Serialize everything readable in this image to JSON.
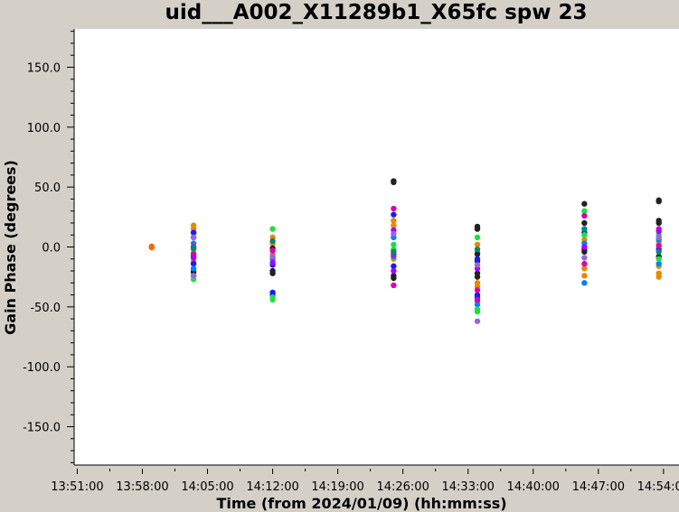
{
  "chart_data": {
    "type": "scatter",
    "title": "uid___A002_X11289b1_X65fc spw 23",
    "xlabel": "Time (from 2024/01/09) (hh:mm:ss)",
    "ylabel": "Gain Phase (degrees)",
    "x_ticks": [
      "13:51:00",
      "13:58:00",
      "14:05:00",
      "14:12:00",
      "14:19:00",
      "14:26:00",
      "14:33:00",
      "14:40:00",
      "14:47:00",
      "14:54:00"
    ],
    "y_ticks": [
      150,
      100,
      50,
      0,
      -50,
      -100,
      -150
    ],
    "y_tick_labels": [
      "150.0",
      "100.0",
      "50.0",
      "0.0",
      "-50.0",
      "-100.0",
      "-150.0"
    ],
    "xlim": [
      "13:50:40",
      "14:55:40"
    ],
    "ylim": [
      -182,
      182
    ],
    "grid": false,
    "background": "#d4d0c8",
    "plot_background": "#ffffff",
    "series": [
      {
        "color": "#ff6600",
        "points": [
          [
            "13:59:00",
            0.5
          ],
          [
            "13:59:00",
            -0.5
          ]
        ]
      },
      {
        "color": "#e68a00",
        "points": [
          [
            "14:03:30",
            18
          ],
          [
            "14:03:30",
            15
          ],
          [
            "14:03:30",
            12
          ],
          [
            "14:03:30",
            -2
          ],
          [
            "14:03:30",
            -12
          ],
          [
            "14:03:30",
            -20
          ],
          [
            "14:12:00",
            8
          ],
          [
            "14:12:00",
            3
          ],
          [
            "14:12:00",
            -6
          ],
          [
            "14:25:00",
            22
          ],
          [
            "14:25:00",
            18
          ],
          [
            "14:25:00",
            -10
          ],
          [
            "14:34:00",
            2
          ],
          [
            "14:34:00",
            -4
          ],
          [
            "14:34:00",
            -30
          ],
          [
            "14:34:00",
            -33
          ],
          [
            "14:45:30",
            6
          ],
          [
            "14:45:30",
            -18
          ],
          [
            "14:45:30",
            -24
          ],
          [
            "14:53:30",
            4
          ],
          [
            "14:53:30",
            -16
          ],
          [
            "14:53:30",
            -22
          ],
          [
            "14:53:30",
            -25
          ]
        ]
      },
      {
        "color": "#222222",
        "points": [
          [
            "14:03:30",
            8
          ],
          [
            "14:03:30",
            -8
          ],
          [
            "14:03:30",
            -21
          ],
          [
            "14:03:30",
            -24
          ],
          [
            "14:12:00",
            -1
          ],
          [
            "14:12:00",
            -20
          ],
          [
            "14:12:00",
            -22
          ],
          [
            "14:25:00",
            54
          ],
          [
            "14:25:00",
            55
          ],
          [
            "14:25:00",
            -24
          ],
          [
            "14:25:00",
            -26
          ],
          [
            "14:34:00",
            17
          ],
          [
            "14:34:00",
            15
          ],
          [
            "14:34:00",
            -6
          ],
          [
            "14:34:00",
            -12
          ],
          [
            "14:34:00",
            -22
          ],
          [
            "14:34:00",
            -25
          ],
          [
            "14:45:30",
            36
          ],
          [
            "14:45:30",
            20
          ],
          [
            "14:45:30",
            -2
          ],
          [
            "14:45:30",
            -4
          ],
          [
            "14:53:30",
            39
          ],
          [
            "14:53:30",
            38
          ],
          [
            "14:53:30",
            22
          ],
          [
            "14:53:30",
            20
          ],
          [
            "14:53:30",
            -8
          ]
        ]
      },
      {
        "color": "#1a1aff",
        "points": [
          [
            "14:03:30",
            12
          ],
          [
            "14:03:30",
            -14
          ],
          [
            "14:12:00",
            -38
          ],
          [
            "14:12:00",
            -40
          ],
          [
            "14:12:00",
            -15
          ],
          [
            "14:25:00",
            27
          ],
          [
            "14:25:00",
            -16
          ],
          [
            "14:34:00",
            -40
          ],
          [
            "14:34:00",
            -42
          ],
          [
            "14:34:00",
            -10
          ],
          [
            "14:45:30",
            12
          ],
          [
            "14:53:30",
            -2
          ]
        ]
      },
      {
        "color": "#0080ff",
        "points": [
          [
            "14:03:30",
            3
          ],
          [
            "14:03:30",
            -18
          ],
          [
            "14:12:00",
            -10
          ],
          [
            "14:25:00",
            8
          ],
          [
            "14:25:00",
            -8
          ],
          [
            "14:34:00",
            -45
          ],
          [
            "14:34:00",
            -48
          ],
          [
            "14:45:30",
            -30
          ],
          [
            "14:45:30",
            3
          ],
          [
            "14:53:30",
            6
          ],
          [
            "14:53:30",
            -14
          ]
        ]
      },
      {
        "color": "#22dd44",
        "points": [
          [
            "14:03:30",
            -27
          ],
          [
            "14:03:30",
            -5
          ],
          [
            "14:12:00",
            15
          ],
          [
            "14:12:00",
            -42
          ],
          [
            "14:12:00",
            -44
          ],
          [
            "14:25:00",
            2
          ],
          [
            "14:25:00",
            -2
          ],
          [
            "14:34:00",
            8
          ],
          [
            "14:34:00",
            -52
          ],
          [
            "14:34:00",
            -54
          ],
          [
            "14:45:30",
            30
          ],
          [
            "14:45:30",
            10
          ],
          [
            "14:53:30",
            10
          ],
          [
            "14:53:30",
            -10
          ]
        ]
      },
      {
        "color": "#dd00aa",
        "points": [
          [
            "14:03:30",
            0
          ],
          [
            "14:03:30",
            -6
          ],
          [
            "14:12:00",
            -3
          ],
          [
            "14:25:00",
            32
          ],
          [
            "14:25:00",
            -32
          ],
          [
            "14:25:00",
            -6
          ],
          [
            "14:34:00",
            -44
          ],
          [
            "14:34:00",
            -36
          ],
          [
            "14:45:30",
            26
          ],
          [
            "14:45:30",
            -14
          ],
          [
            "14:53:30",
            15
          ],
          [
            "14:53:30",
            1
          ]
        ]
      },
      {
        "color": "#aa00ff",
        "points": [
          [
            "14:03:30",
            -9
          ],
          [
            "14:12:00",
            -13
          ],
          [
            "14:25:00",
            14
          ],
          [
            "14:25:00",
            -20
          ],
          [
            "14:34:00",
            -18
          ],
          [
            "14:45:30",
            0
          ],
          [
            "14:53:30",
            13
          ]
        ]
      },
      {
        "color": "#9966dd",
        "points": [
          [
            "14:03:30",
            8
          ],
          [
            "14:03:30",
            -24
          ],
          [
            "14:12:00",
            -8
          ],
          [
            "14:25:00",
            11
          ],
          [
            "14:34:00",
            -62
          ],
          [
            "14:34:00",
            -15
          ],
          [
            "14:45:30",
            -9
          ],
          [
            "14:53:30",
            8
          ]
        ]
      },
      {
        "color": "#008877",
        "points": [
          [
            "14:03:30",
            -1
          ],
          [
            "14:12:00",
            5
          ],
          [
            "14:25:00",
            -4
          ],
          [
            "14:34:00",
            -2
          ],
          [
            "14:45:30",
            15
          ],
          [
            "14:53:30",
            -4
          ]
        ]
      }
    ]
  }
}
